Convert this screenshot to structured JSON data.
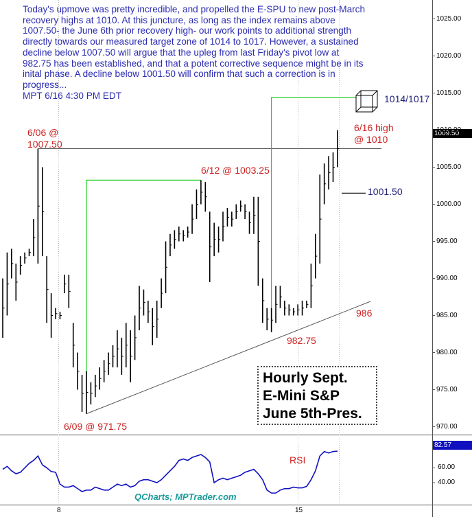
{
  "chart_data": [
    {
      "type": "bar",
      "title": "",
      "ylabel": "",
      "ylim": [
        969,
        1029
      ],
      "y_ticks": [
        "970.00",
        "975.00",
        "980.00",
        "985.00",
        "990.00",
        "995.00",
        "1000.00",
        "1005.00",
        "1010.00",
        "1015.00",
        "1020.00",
        "1025.00"
      ],
      "x_ticks": [
        "8",
        "15"
      ],
      "last_price": "1009.50",
      "series": [
        {
          "values": [
            {
              "high": 990.0,
              "low": 982.0
            },
            {
              "high": 993.5,
              "low": 985.0
            },
            {
              "high": 994.0,
              "low": 990.0
            },
            {
              "high": 992.0,
              "low": 987.0
            },
            {
              "high": 993.0,
              "low": 990.5
            },
            {
              "high": 993.5,
              "low": 992.0
            },
            {
              "high": 994.0,
              "low": 993.0
            },
            {
              "high": 998.0,
              "low": 993.0
            },
            {
              "high": 1007.5,
              "low": 992.0
            },
            {
              "high": 1005.0,
              "low": 993.0
            },
            {
              "high": 993.0,
              "low": 984.0
            },
            {
              "high": 988.0,
              "low": 982.0
            },
            {
              "high": 986.0,
              "low": 984.5
            },
            {
              "high": 985.5,
              "low": 984.5
            },
            {
              "high": 990.5,
              "low": 988.0
            },
            {
              "high": 990.5,
              "low": 986.0
            },
            {
              "high": 984.0,
              "low": 978.0
            },
            {
              "high": 980.0,
              "low": 975.0
            },
            {
              "high": 977.0,
              "low": 972.0
            },
            {
              "high": 977.5,
              "low": 971.75
            },
            {
              "high": 976.0,
              "low": 973.0
            },
            {
              "high": 977.0,
              "low": 974.0
            },
            {
              "high": 978.0,
              "low": 975.0
            },
            {
              "high": 979.0,
              "low": 976.0
            },
            {
              "high": 980.0,
              "low": 977.0
            },
            {
              "high": 981.0,
              "low": 978.0
            },
            {
              "high": 983.0,
              "low": 978.0
            },
            {
              "high": 982.0,
              "low": 977.0
            },
            {
              "high": 984.0,
              "low": 978.0
            },
            {
              "high": 983.0,
              "low": 976.0
            },
            {
              "high": 985.0,
              "low": 979.0
            },
            {
              "high": 989.0,
              "low": 983.0
            },
            {
              "high": 988.5,
              "low": 985.0
            },
            {
              "high": 987.0,
              "low": 984.0
            },
            {
              "high": 986.0,
              "low": 981.0
            },
            {
              "high": 987.0,
              "low": 982.0
            },
            {
              "high": 990.0,
              "low": 986.0
            },
            {
              "high": 995.0,
              "low": 988.0
            },
            {
              "high": 996.0,
              "low": 993.0
            },
            {
              "high": 996.5,
              "low": 994.0
            },
            {
              "high": 997.0,
              "low": 995.0
            },
            {
              "high": 996.5,
              "low": 995.0
            },
            {
              "high": 997.0,
              "low": 995.5
            },
            {
              "high": 1000.0,
              "low": 996.0
            },
            {
              "high": 1002.0,
              "low": 998.0
            },
            {
              "high": 1003.25,
              "low": 1000.0
            },
            {
              "high": 1003.0,
              "low": 999.0
            },
            {
              "high": 999.0,
              "low": 989.5
            },
            {
              "high": 997.5,
              "low": 993.0
            },
            {
              "high": 997.0,
              "low": 993.5
            },
            {
              "high": 999.0,
              "low": 995.0
            },
            {
              "high": 999.5,
              "low": 997.0
            },
            {
              "high": 999.0,
              "low": 997.0
            },
            {
              "high": 1000.0,
              "low": 998.0
            },
            {
              "high": 1000.5,
              "low": 999.0
            },
            {
              "high": 1000.0,
              "low": 998.0
            },
            {
              "high": 999.0,
              "low": 996.0
            },
            {
              "high": 1001.0,
              "low": 996.0
            },
            {
              "high": 1001.0,
              "low": 989.0
            },
            {
              "high": 990.0,
              "low": 984.0
            },
            {
              "high": 986.0,
              "low": 983.0
            },
            {
              "high": 986.0,
              "low": 982.75
            },
            {
              "high": 989.0,
              "low": 984.0
            },
            {
              "high": 989.0,
              "low": 986.0
            },
            {
              "high": 987.0,
              "low": 985.0
            },
            {
              "high": 986.5,
              "low": 985.0
            },
            {
              "high": 986.0,
              "low": 985.0
            },
            {
              "high": 986.5,
              "low": 985.0
            },
            {
              "high": 987.0,
              "low": 985.0
            },
            {
              "high": 987.0,
              "low": 986.0
            },
            {
              "high": 992.0,
              "low": 986.0
            },
            {
              "high": 996.0,
              "low": 990.0
            },
            {
              "high": 1004.0,
              "low": 992.0
            },
            {
              "high": 1005.5,
              "low": 1000.0
            },
            {
              "high": 1006.5,
              "low": 1002.0
            },
            {
              "high": 1007.0,
              "low": 1003.0
            },
            {
              "high": 1010.0,
              "low": 1005.0
            }
          ]
        }
      ],
      "annotations": {
        "commentary": "Today's upmove was pretty incredible, and propelled the E-SPU to new post-March recovery highs at 1010. At this juncture, as long as the index remains above 1007.50- the June 6th prior recovery high- our work points to additional strength directly towards our measured target zone of 1014 to 1017.  However, a sustained decline below 1007.50 will argue that the upleg from last Friday's pivot low at 982.75 has been established, and that a potent corrective sequence might be in its inital phase. A decline below 1001.50 will confirm that such a correction is in progress...\nMPT  6/16 4:30 PM EDT",
        "label_0606": "6/06 @\n1007.50",
        "label_0612": "6/12 @ 1003.25",
        "label_0616": "6/16 high\n@ 1010",
        "label_0609": "6/09 @ 971.75",
        "label_low": "982.75",
        "label_target": "1014/1017",
        "label_support": "1001.50",
        "label_trend": "986",
        "title_box": "Hourly Sept.\nE-Mini S&P\nJune 5th-Pres.",
        "credit": "QCharts; MPTrader.com"
      }
    },
    {
      "type": "line",
      "ylim": [
        20,
        90
      ],
      "y_ticks": [
        "40.00",
        "60.00"
      ],
      "last_value": "82.57",
      "label": "RSI",
      "series": [
        {
          "values": [
            58,
            62,
            56,
            52,
            54,
            60,
            66,
            70,
            76,
            64,
            60,
            55,
            54,
            38,
            34,
            34,
            36,
            32,
            28,
            30,
            30,
            34,
            32,
            30,
            30,
            34,
            38,
            36,
            38,
            34,
            36,
            42,
            44,
            44,
            42,
            40,
            44,
            50,
            56,
            62,
            70,
            72,
            70,
            74,
            76,
            78,
            74,
            68,
            40,
            44,
            46,
            44,
            46,
            48,
            50,
            54,
            56,
            58,
            52,
            44,
            30,
            26,
            26,
            30,
            32,
            32,
            34,
            33,
            33,
            35,
            44,
            56,
            76,
            82,
            80,
            82,
            82.57
          ]
        }
      ]
    }
  ]
}
